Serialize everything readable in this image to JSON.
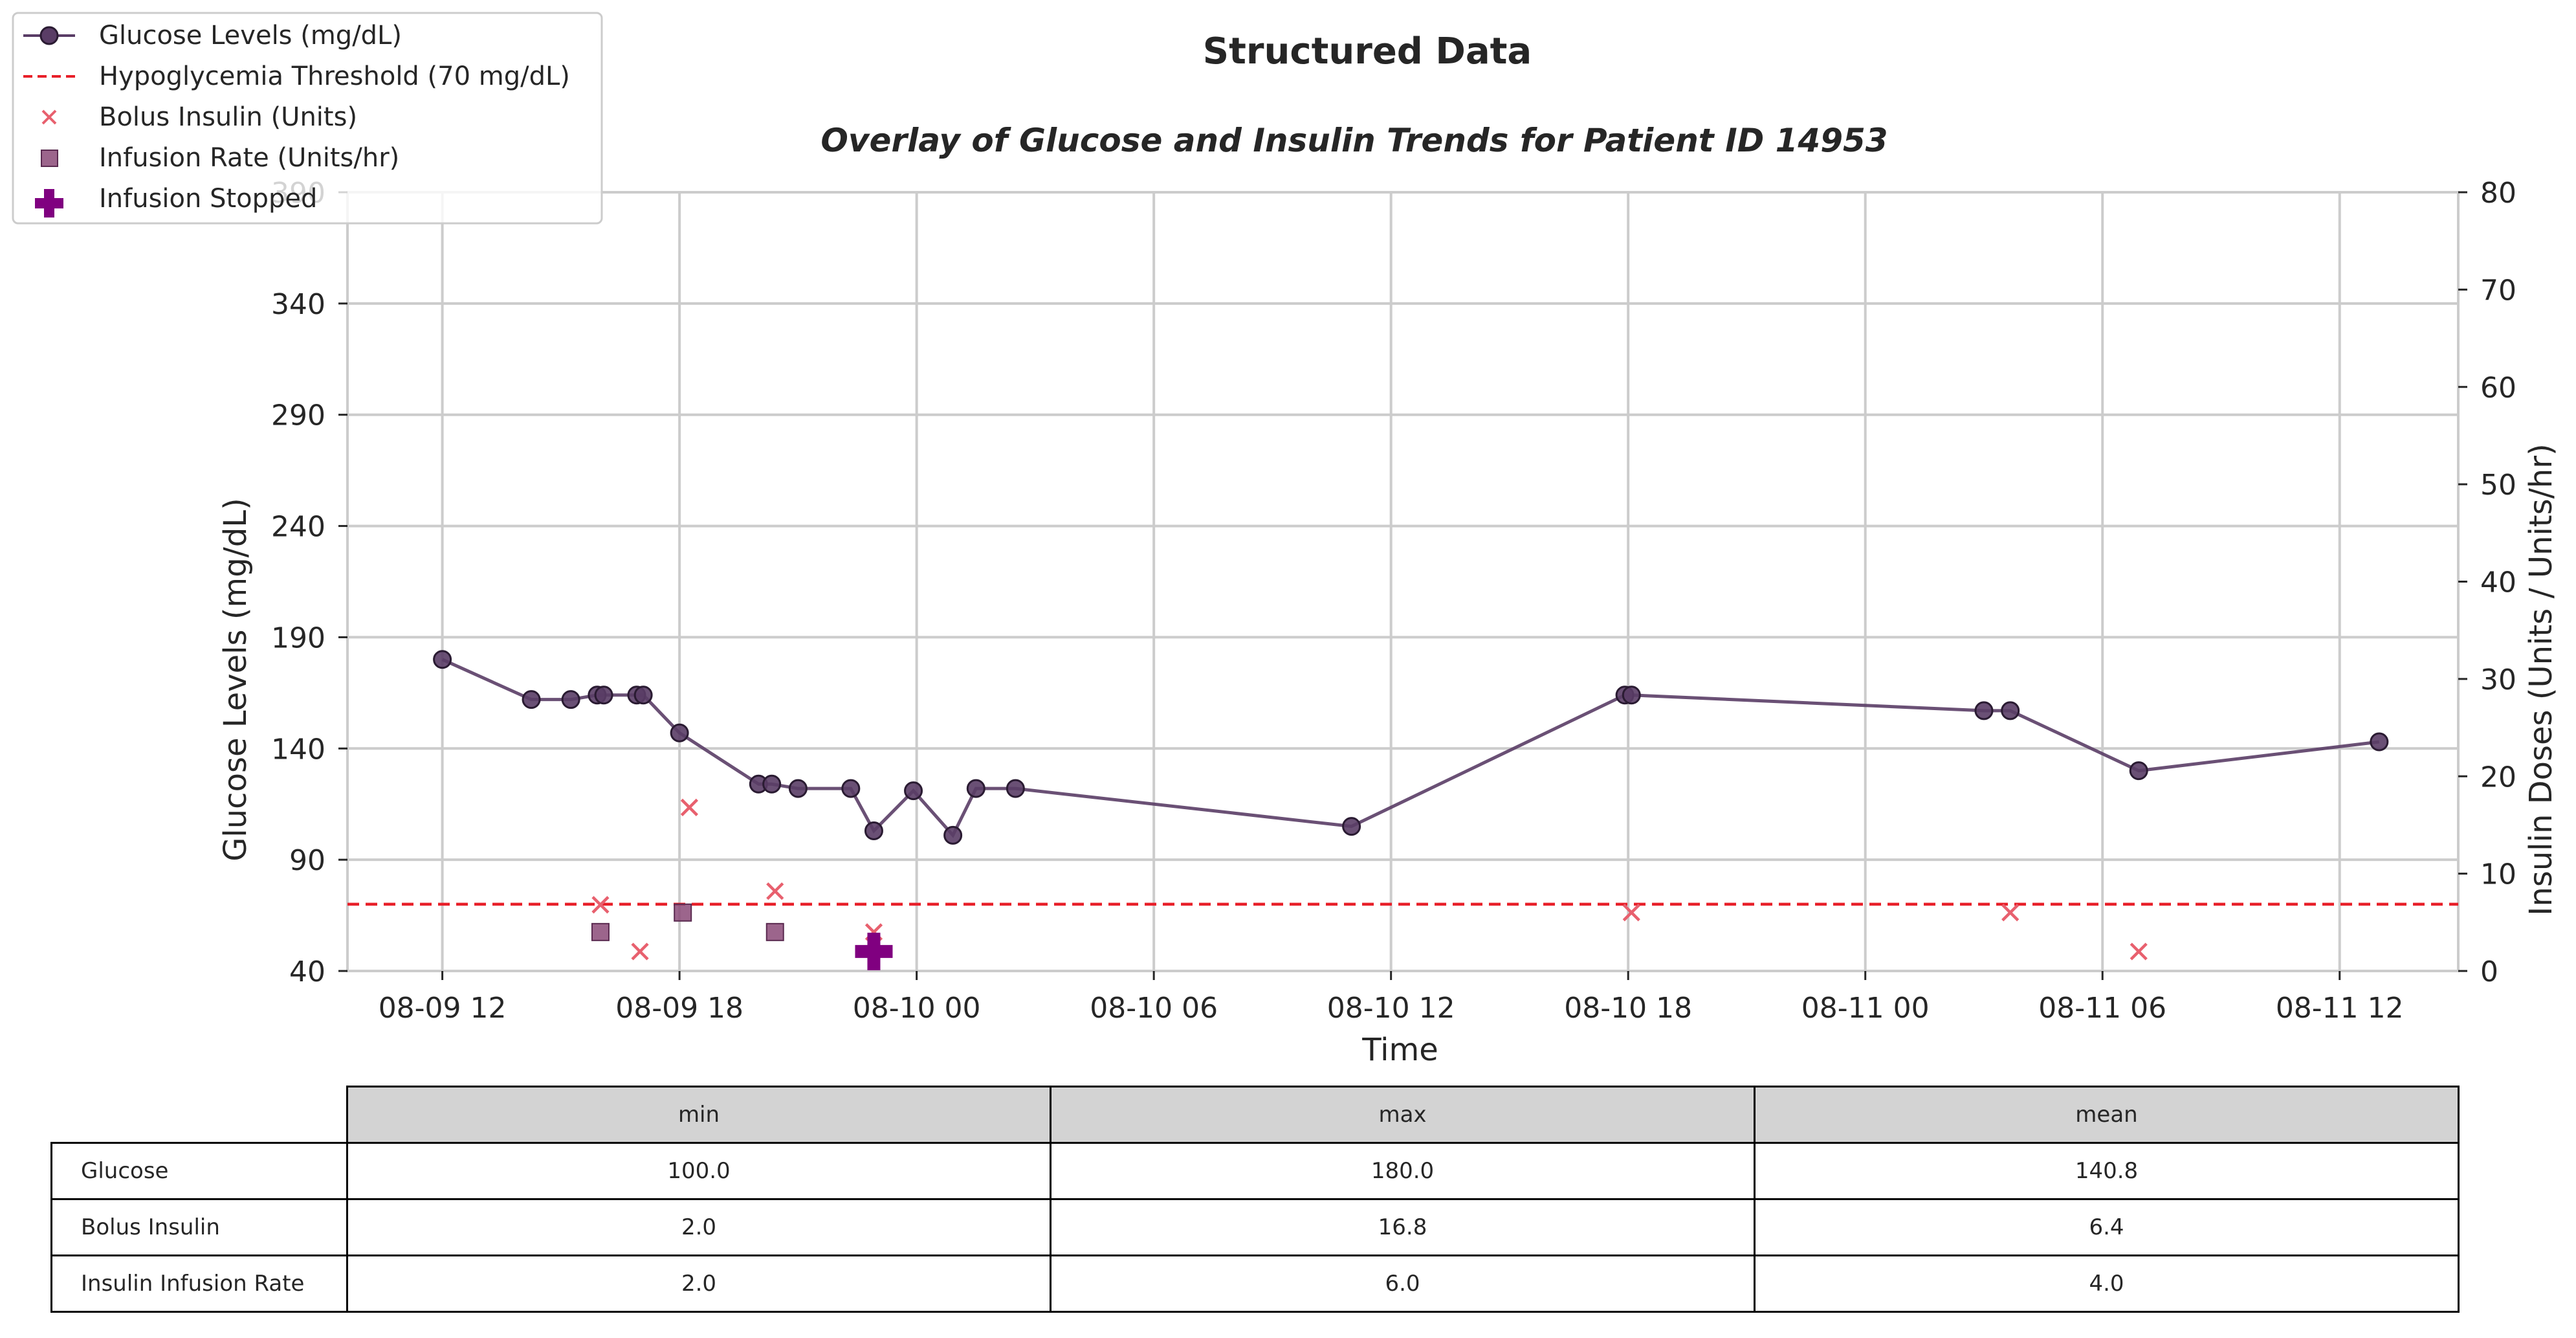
{
  "chart_data": {
    "type": "line",
    "title": "Structured Data",
    "subtitle": "Overlay of Glucose and Insulin Trends for Patient ID 14953",
    "xlabel": "Time",
    "ylabel": "Glucose Levels (mg/dL)",
    "y2label": "Insulin Doses (Units / Units/hr)",
    "ylim": [
      40,
      390
    ],
    "y2lim": [
      0,
      80
    ],
    "xlim": [
      "2024-08-09T09:36",
      "2024-08-11T15:00"
    ],
    "x_ticks": [
      "08-09 12",
      "08-09 18",
      "08-10 00",
      "08-10 06",
      "08-10 12",
      "08-10 18",
      "08-11 00",
      "08-11 06",
      "08-11 12"
    ],
    "x_tick_times": [
      "2024-08-09T12:00",
      "2024-08-09T18:00",
      "2024-08-10T00:00",
      "2024-08-10T06:00",
      "2024-08-10T12:00",
      "2024-08-10T18:00",
      "2024-08-11T00:00",
      "2024-08-11T06:00",
      "2024-08-11T12:00"
    ],
    "y_ticks": [
      40,
      90,
      140,
      190,
      240,
      290,
      340,
      390
    ],
    "y_ticks_labels": [
      "40",
      "90",
      "140",
      "190",
      "240",
      "290",
      "340",
      "390"
    ],
    "y2_ticks": [
      0,
      10,
      20,
      30,
      40,
      50,
      60,
      70,
      80
    ],
    "y2_ticks_labels": [
      "0",
      "10",
      "20",
      "30",
      "40",
      "50",
      "60",
      "70",
      "80"
    ],
    "grid": true,
    "legend_position": "top-left",
    "threshold": {
      "name": "Hypoglycemia Threshold (70 mg/dL)",
      "value": 70
    },
    "series": [
      {
        "name": "Glucose Levels (mg/dL)",
        "kind": "line",
        "axis": "left",
        "color": "#5a3d66",
        "x": [
          "2024-08-09T12:00",
          "2024-08-09T14:15",
          "2024-08-09T15:15",
          "2024-08-09T15:55",
          "2024-08-09T16:05",
          "2024-08-09T16:55",
          "2024-08-09T17:05",
          "2024-08-09T18:00",
          "2024-08-09T20:00",
          "2024-08-09T20:20",
          "2024-08-09T21:00",
          "2024-08-09T22:20",
          "2024-08-09T22:55",
          "2024-08-09T23:55",
          "2024-08-10T00:55",
          "2024-08-10T01:30",
          "2024-08-10T02:30",
          "2024-08-10T11:00",
          "2024-08-10T17:55",
          "2024-08-10T18:05",
          "2024-08-11T03:00",
          "2024-08-11T03:40",
          "2024-08-11T06:55",
          "2024-08-11T13:00"
        ],
        "y": [
          180,
          162,
          162,
          164,
          164,
          164,
          164,
          147,
          124,
          124,
          122,
          122,
          103,
          121,
          101,
          122,
          122,
          105,
          164,
          164,
          157,
          157,
          130,
          143
        ]
      },
      {
        "name": "Bolus Insulin (Units)",
        "kind": "scatter",
        "axis": "right",
        "color": "#e8606e",
        "x": [
          "2024-08-09T16:00",
          "2024-08-09T17:00",
          "2024-08-09T18:15",
          "2024-08-09T20:25",
          "2024-08-09T22:55",
          "2024-08-10T18:05",
          "2024-08-11T03:40",
          "2024-08-11T06:55"
        ],
        "y": [
          6.8,
          2.0,
          16.8,
          8.2,
          4.0,
          6.0,
          6.0,
          2.0
        ]
      },
      {
        "name": "Infusion Rate (Units/hr)",
        "kind": "scatter",
        "axis": "right",
        "color": "#8b4a78",
        "x": [
          "2024-08-09T16:00",
          "2024-08-09T18:05",
          "2024-08-09T20:25"
        ],
        "y": [
          4.0,
          6.0,
          4.0
        ]
      },
      {
        "name": "Infusion Stopped",
        "kind": "scatter",
        "axis": "right",
        "color": "#800080",
        "x": [
          "2024-08-09T22:55"
        ],
        "y": [
          2.0
        ]
      }
    ],
    "table": {
      "columns": [
        "min",
        "max",
        "mean"
      ],
      "rows": [
        {
          "label": "Glucose",
          "values": [
            "100.0",
            "180.0",
            "140.8"
          ]
        },
        {
          "label": "Bolus Insulin",
          "values": [
            "2.0",
            "16.8",
            "6.4"
          ]
        },
        {
          "label": "Insulin Infusion Rate",
          "values": [
            "2.0",
            "6.0",
            "4.0"
          ]
        }
      ]
    }
  }
}
